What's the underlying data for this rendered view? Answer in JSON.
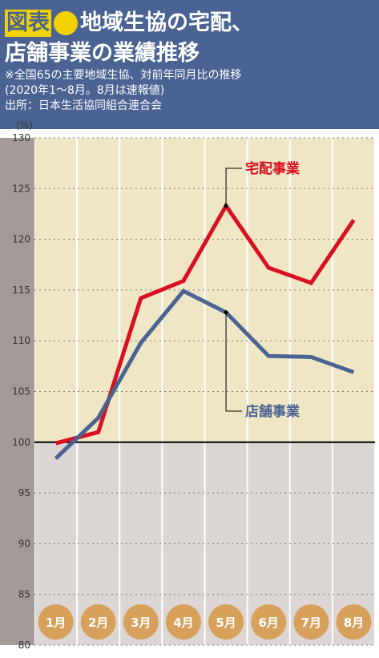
{
  "header": {
    "badge": "図表",
    "title_line_1": "地域生協の宅配、",
    "title_line_2": "店舗事業の業績推移",
    "note_1": "※全国65の主要地域生協、対前年同月比の推移",
    "note_2": "(2020年1～8月。8月は速報値)",
    "note_3": "出所：日本生活協同組合連合会"
  },
  "colors": {
    "header_bg": "#4a6392",
    "badge": "#f2d100",
    "takuhai": "#d8101f",
    "tenpo": "#4a6392",
    "month_circle": "#d7a15c",
    "band_light": "#efe6c5",
    "band_dark": "#dcd6d4",
    "axis_strip": "#a49b98",
    "baseline_100": "#000000"
  },
  "chart_data": {
    "type": "line",
    "unit_label": "(%)",
    "categories": [
      "1月",
      "2月",
      "3月",
      "4月",
      "5月",
      "6月",
      "7月",
      "8月"
    ],
    "ylim": [
      80,
      130
    ],
    "yticks": [
      "130",
      "125",
      "120",
      "115",
      "110",
      "105",
      "100",
      "95",
      "90",
      "85",
      "80"
    ],
    "series": [
      {
        "name": "宅配事業",
        "values": [
          99.9,
          101.0,
          114.2,
          115.9,
          123.3,
          117.2,
          115.7,
          121.9
        ]
      },
      {
        "name": "店舗事業",
        "values": [
          98.4,
          102.4,
          109.8,
          114.9,
          112.8,
          108.5,
          108.4,
          106.9
        ]
      }
    ],
    "baseline": 100,
    "grid": true
  }
}
